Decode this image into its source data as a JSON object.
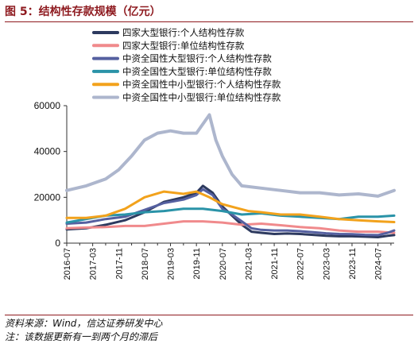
{
  "title": "图 5：结构性存款规模（亿元）",
  "footer": {
    "source": "资料来源：Wind，信达证券研发中心",
    "note": "注：该数据更新有一到两个月的滞后"
  },
  "chart_data": {
    "type": "line",
    "ylim": [
      0,
      60000
    ],
    "yticks": [
      0,
      20000,
      40000,
      60000
    ],
    "xlim": [
      "2016-07",
      "2024-12"
    ],
    "xticks": [
      "2016-07",
      "2017-03",
      "2017-11",
      "2018-07",
      "2019-03",
      "2019-11",
      "2020-07",
      "2021-03",
      "2021-11",
      "2022-07",
      "2023-03",
      "2023-11",
      "2024-07"
    ],
    "extra_xticks": [
      "2016-11",
      "2017-07",
      "2018-03",
      "2018-11",
      "2019-07",
      "2020-03",
      "2020-11",
      "2021-07",
      "2022-03",
      "2022-11",
      "2023-07",
      "2024-03",
      "2024-11"
    ],
    "legend_position": "top-left",
    "grid": false,
    "series": [
      {
        "name": "四家大型银行:个人结构性存款",
        "color": "#2d3a5f",
        "width": 3,
        "points": [
          [
            "2016-07",
            6000
          ],
          [
            "2017-01",
            6500
          ],
          [
            "2017-07",
            8000
          ],
          [
            "2018-01",
            10000
          ],
          [
            "2018-07",
            13500
          ],
          [
            "2019-01",
            18000
          ],
          [
            "2019-07",
            20000
          ],
          [
            "2019-11",
            22000
          ],
          [
            "2020-01",
            25000
          ],
          [
            "2020-04",
            22000
          ],
          [
            "2020-07",
            16000
          ],
          [
            "2020-10",
            12000
          ],
          [
            "2021-01",
            8000
          ],
          [
            "2021-04",
            5000
          ],
          [
            "2021-07",
            4500
          ],
          [
            "2021-11",
            4000
          ],
          [
            "2022-03",
            4200
          ],
          [
            "2022-07",
            4000
          ],
          [
            "2022-11",
            3600
          ],
          [
            "2023-03",
            3200
          ],
          [
            "2023-07",
            3000
          ],
          [
            "2023-11",
            3000
          ],
          [
            "2024-03",
            2800
          ],
          [
            "2024-07",
            2600
          ],
          [
            "2024-10",
            3200
          ],
          [
            "2024-12",
            3500
          ]
        ]
      },
      {
        "name": "四家大型银行:单位结构性存款",
        "color": "#f08a8c",
        "width": 3,
        "points": [
          [
            "2016-07",
            6500
          ],
          [
            "2017-01",
            6800
          ],
          [
            "2017-07",
            7000
          ],
          [
            "2018-01",
            7500
          ],
          [
            "2018-07",
            7500
          ],
          [
            "2019-01",
            8500
          ],
          [
            "2019-07",
            9500
          ],
          [
            "2020-01",
            9500
          ],
          [
            "2020-07",
            9000
          ],
          [
            "2021-01",
            8000
          ],
          [
            "2021-07",
            8500
          ],
          [
            "2022-01",
            7800
          ],
          [
            "2022-07",
            7000
          ],
          [
            "2023-01",
            6500
          ],
          [
            "2023-07",
            5500
          ],
          [
            "2024-01",
            5000
          ],
          [
            "2024-07",
            5000
          ],
          [
            "2024-12",
            4500
          ]
        ]
      },
      {
        "name": "中资全国性大型银行:个人结构性存款",
        "color": "#5560a0",
        "width": 3,
        "points": [
          [
            "2016-07",
            8500
          ],
          [
            "2017-01",
            9000
          ],
          [
            "2017-07",
            10500
          ],
          [
            "2018-01",
            11500
          ],
          [
            "2018-07",
            14500
          ],
          [
            "2019-01",
            17500
          ],
          [
            "2019-07",
            19000
          ],
          [
            "2019-11",
            21000
          ],
          [
            "2020-01",
            23500
          ],
          [
            "2020-04",
            21000
          ],
          [
            "2020-07",
            15000
          ],
          [
            "2020-10",
            12500
          ],
          [
            "2021-01",
            9500
          ],
          [
            "2021-04",
            6500
          ],
          [
            "2021-07",
            5800
          ],
          [
            "2021-11",
            5500
          ],
          [
            "2022-03",
            5500
          ],
          [
            "2022-07",
            5200
          ],
          [
            "2022-11",
            4800
          ],
          [
            "2023-03",
            4300
          ],
          [
            "2023-07",
            4000
          ],
          [
            "2023-11",
            3900
          ],
          [
            "2024-03",
            3600
          ],
          [
            "2024-07",
            3500
          ],
          [
            "2024-10",
            4500
          ],
          [
            "2024-12",
            5500
          ]
        ]
      },
      {
        "name": "中资全国性大型银行:单位结构性存款",
        "color": "#2a93a8",
        "width": 3,
        "points": [
          [
            "2016-07",
            9000
          ],
          [
            "2017-01",
            10500
          ],
          [
            "2017-07",
            12000
          ],
          [
            "2018-01",
            12500
          ],
          [
            "2018-07",
            13500
          ],
          [
            "2019-01",
            14000
          ],
          [
            "2019-07",
            15000
          ],
          [
            "2020-01",
            15000
          ],
          [
            "2020-07",
            14000
          ],
          [
            "2021-01",
            12500
          ],
          [
            "2021-07",
            13000
          ],
          [
            "2022-01",
            12000
          ],
          [
            "2022-07",
            11500
          ],
          [
            "2023-01",
            11000
          ],
          [
            "2023-07",
            10500
          ],
          [
            "2024-01",
            11500
          ],
          [
            "2024-07",
            11500
          ],
          [
            "2024-12",
            12000
          ]
        ]
      },
      {
        "name": "中资全国性中小型银行:个人结构性存款",
        "color": "#f2a21c",
        "width": 3,
        "points": [
          [
            "2016-07",
            11000
          ],
          [
            "2017-01",
            11000
          ],
          [
            "2017-07",
            12000
          ],
          [
            "2018-01",
            15000
          ],
          [
            "2018-07",
            20000
          ],
          [
            "2019-01",
            22500
          ],
          [
            "2019-07",
            21500
          ],
          [
            "2019-11",
            22500
          ],
          [
            "2020-03",
            20000
          ],
          [
            "2020-07",
            17000
          ],
          [
            "2020-11",
            15500
          ],
          [
            "2021-03",
            14000
          ],
          [
            "2021-07",
            13500
          ],
          [
            "2022-01",
            12500
          ],
          [
            "2022-07",
            12500
          ],
          [
            "2023-01",
            11500
          ],
          [
            "2023-07",
            10500
          ],
          [
            "2024-01",
            10000
          ],
          [
            "2024-07",
            9500
          ],
          [
            "2024-12",
            9200
          ]
        ]
      },
      {
        "name": "中资全国性中小型银行:单位结构性存款",
        "color": "#adb6cd",
        "width": 4,
        "points": [
          [
            "2016-07",
            23000
          ],
          [
            "2017-01",
            25000
          ],
          [
            "2017-07",
            28000
          ],
          [
            "2017-11",
            32000
          ],
          [
            "2018-03",
            38000
          ],
          [
            "2018-07",
            45000
          ],
          [
            "2018-11",
            48000
          ],
          [
            "2019-03",
            49000
          ],
          [
            "2019-07",
            48000
          ],
          [
            "2019-11",
            48000
          ],
          [
            "2020-01",
            52000
          ],
          [
            "2020-03",
            56000
          ],
          [
            "2020-05",
            45000
          ],
          [
            "2020-07",
            38000
          ],
          [
            "2020-10",
            30000
          ],
          [
            "2021-01",
            25000
          ],
          [
            "2021-07",
            24000
          ],
          [
            "2022-01",
            23000
          ],
          [
            "2022-07",
            22000
          ],
          [
            "2023-01",
            22000
          ],
          [
            "2023-07",
            21000
          ],
          [
            "2024-01",
            21500
          ],
          [
            "2024-07",
            20500
          ],
          [
            "2024-12",
            23000
          ]
        ]
      }
    ]
  }
}
